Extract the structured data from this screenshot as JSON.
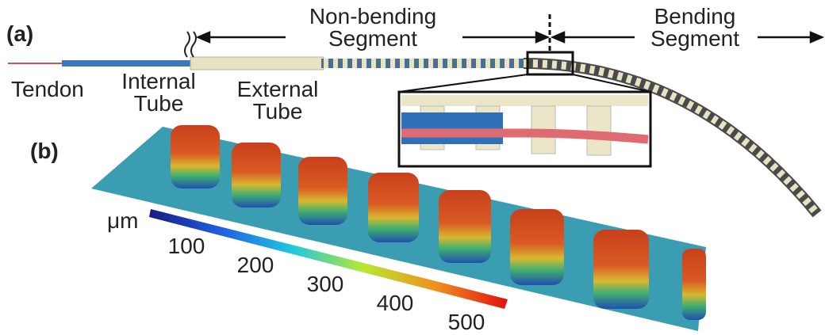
{
  "panel_a": {
    "label": "(a)",
    "non_bending": [
      "Non-bending",
      "Segment"
    ],
    "bending": [
      "Bending",
      "Segment"
    ],
    "tendon": "Tendon",
    "internal_tube": [
      "Internal",
      "Tube"
    ],
    "external_tube": [
      "External",
      "Tube"
    ]
  },
  "panel_b": {
    "label": "(b)",
    "unit": "μm",
    "colorbar_ticks": [
      100,
      200,
      300,
      400,
      500
    ]
  }
}
